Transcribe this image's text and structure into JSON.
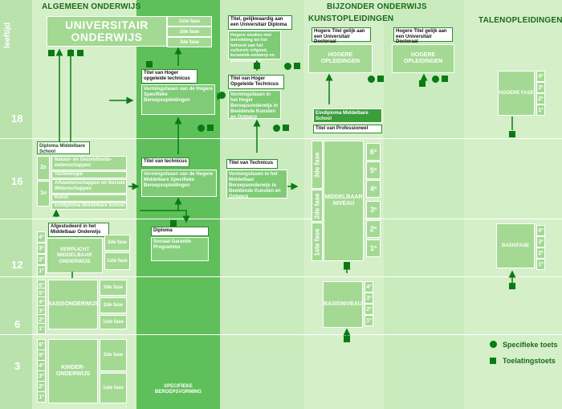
{
  "headers": {
    "general": "ALGEMEEN ONDERWIJS",
    "special": "BIJZONDER ONDERWIJS",
    "arts": "KUNSTOPLEIDINGEN",
    "languages": "TALENOPLEIDINGEN"
  },
  "age_axis": {
    "top_label": "leeftijd",
    "ages": [
      "18",
      "16",
      "12",
      "6",
      "3"
    ]
  },
  "university": {
    "title": "UNIVERSITAIR ONDERWIJS",
    "phases": [
      "1ste fase",
      "2de fase",
      "3de fase"
    ]
  },
  "titles": {
    "hoger_opgeleide_technicus": "Titel van Hoger opgeleide technicus",
    "vormingsfasen_hoger": "Vormingsfasen van de Hogere Specifieke Beroepsopleidingen",
    "gelijkwaardig": "Titel, gelijkwaardig aan een Universitair Diploma",
    "hogere_studies": "Hogere studies met betrekking tot het behoud van het culturele erfgoed, keramiek-ontwerp en glasontwerpen",
    "hoger_technicus_arts": "Titel van Hoger Opgeleide Technicus",
    "vormingsfasen_arts_hoger": "Vormingsfasen in het Hoger Beroepsonderwijs in Beeldende Kunsten en Ontwerp",
    "technicus": "Titel van technicus",
    "vormingsfasen_middelbaar": "Vormingsfasen van de Hogere Middelbare Specifieke Beroepsopleidingen",
    "technicus_arts": "Titel van Technicus",
    "vormingsfasen_arts_middelbaar": "Vormingsfasen in het Middelbaar Beroepsonderwijs in Beeldende Kunsten en Ontwerp",
    "hogere_titel_1": "Hogere Titel gelijk aan een Universitair Doctoraal",
    "hogere_titel_2": "Hogere Titel gelijk aan een Universitair Doctoraal",
    "eindiploma": "Eindiploma Middelbare School",
    "professioneel": "Titel van Professioneel",
    "diploma_sgp": "Diploma",
    "sgp": "Sociaal Garantie Programma"
  },
  "arts": {
    "hogere_opleidingen_1": "HOGERE OPLEIDINGEN",
    "hogere_opleidingen_2": "HOGERE OPLEIDINGEN",
    "middelbaar": "MIDDELBAAR NIVEAU",
    "basisniveau": "BASISNIVEAU",
    "fases": [
      "3de fase",
      "2de fase",
      "1ste fase"
    ],
    "grades_mid": [
      "6º",
      "5º",
      "4º",
      "3º",
      "2º",
      "1º"
    ],
    "grades_basis": [
      "4º",
      "3º",
      "2º",
      "1º"
    ]
  },
  "languages": {
    "hogere_fase": "HOGERE FASE",
    "basisfase": "BASISFASE",
    "grades_hogere": [
      "4º",
      "3º",
      "2º",
      "1º"
    ],
    "grades_basis": [
      "4º",
      "3º",
      "2º",
      "1º"
    ]
  },
  "secondary": {
    "diploma": "Diploma Middelbare School",
    "years": [
      "2e",
      "1e"
    ],
    "tracks": [
      "Natuur- en Gezondheids-wetenschappen",
      "Technologie",
      "Alfawetenschappen en Sociale Wetenschappen",
      "Kunst",
      "Eindiploma Middelbare School"
    ],
    "getuigschrift": "Afgestudeerd in het Middelbaar Onderwijs",
    "verplicht": "VERPLICHT MIDDELBAAR ONDERWIJS",
    "verplicht_phases": [
      "2de fase",
      "1ste fase"
    ],
    "verplicht_grades": [
      "4º",
      "3º",
      "2º",
      "1º"
    ]
  },
  "primary": {
    "label": "BASISONDERWIJS",
    "phases": [
      "3de fase",
      "2de fase",
      "1ste fase"
    ],
    "grades": [
      "6º",
      "5º",
      "4º",
      "3º",
      "2º",
      "1º"
    ]
  },
  "kinder": {
    "label": "KINDER-ONDERWIJS",
    "phases": [
      "2de fase",
      "1ste fase"
    ],
    "grades": [
      "6º",
      "5º",
      "4º",
      "3º",
      "2º",
      "1º"
    ]
  },
  "footer": {
    "specifieke": "SPECIFIEKE BEROEPSVORMING"
  },
  "legend": {
    "specifieke_toets": "Specifieke toets",
    "toelatingstoets": "Toelatingstoets"
  },
  "colors": {
    "background": "#e9f6e3",
    "column_mid": "#c9ebbd",
    "column_dark": "#5fbf5a",
    "box": "#a4d994",
    "marker": "#0a7a14",
    "header_text": "#1a6b1a"
  }
}
